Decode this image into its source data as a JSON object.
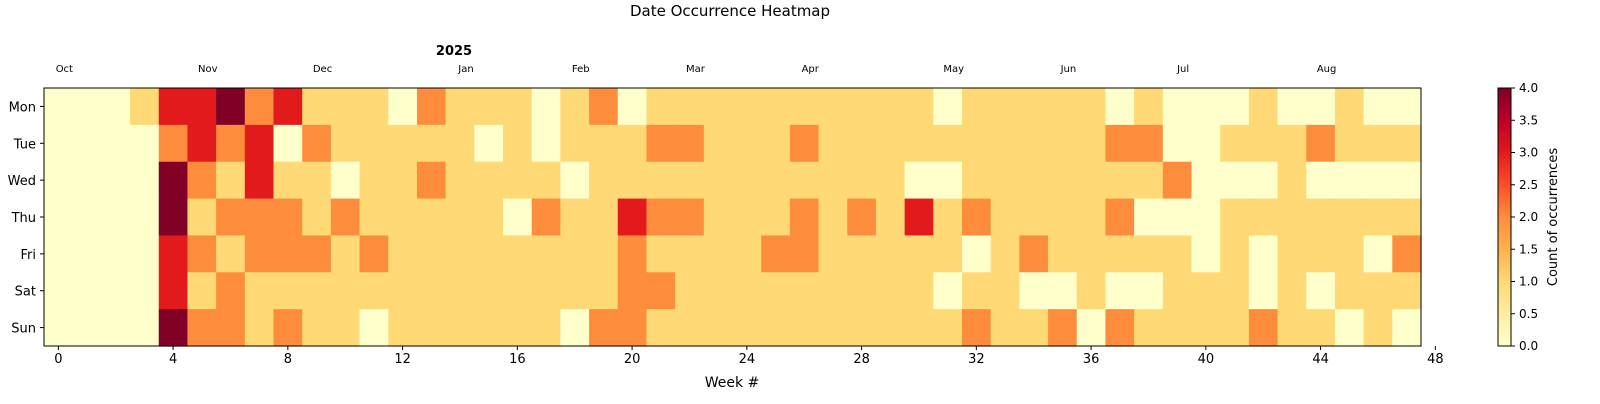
{
  "chart_data": {
    "type": "heatmap",
    "title": "Date Occurrence Heatmap",
    "year_label": "2025",
    "xlabel": "Week #",
    "colorbar_label": "Count of occurrences",
    "x_ticks": [
      0,
      4,
      8,
      12,
      16,
      20,
      24,
      28,
      32,
      36,
      40,
      44,
      48
    ],
    "xlim": [
      -0.5,
      47.5
    ],
    "rows": [
      "Mon",
      "Tue",
      "Wed",
      "Thu",
      "Fri",
      "Sat",
      "Sun"
    ],
    "months": [
      {
        "label": "Oct",
        "week": 0
      },
      {
        "label": "Nov",
        "week": 5
      },
      {
        "label": "Dec",
        "week": 9
      },
      {
        "label": "Jan",
        "week": 14
      },
      {
        "label": "Feb",
        "week": 18
      },
      {
        "label": "Mar",
        "week": 22
      },
      {
        "label": "Apr",
        "week": 26
      },
      {
        "label": "May",
        "week": 31
      },
      {
        "label": "Jun",
        "week": 35
      },
      {
        "label": "Jul",
        "week": 39
      },
      {
        "label": "Aug",
        "week": 44
      }
    ],
    "colorbar_ticks": [
      "0.0",
      "0.5",
      "1.0",
      "1.5",
      "2.0",
      "2.5",
      "3.0",
      "3.5",
      "4.0"
    ],
    "vmin": 0,
    "vmax": 4,
    "colormap": [
      "#ffffcc",
      "#ffeda0",
      "#fed976",
      "#feb24c",
      "#fd8d3c",
      "#fc4e2a",
      "#e31a1c",
      "#bd0026",
      "#800026"
    ],
    "values": [
      [
        0,
        0,
        0,
        1,
        3,
        3,
        4,
        2,
        3,
        1,
        1,
        1,
        0,
        2,
        1,
        1,
        1,
        0,
        1,
        2,
        0,
        1,
        1,
        1,
        1,
        1,
        1,
        1,
        1,
        1,
        1,
        0,
        1,
        1,
        1,
        1,
        1,
        0,
        1,
        0,
        0,
        0,
        1,
        0,
        0,
        1,
        0,
        0
      ],
      [
        0,
        0,
        0,
        0,
        2,
        3,
        2,
        3,
        0,
        2,
        1,
        1,
        1,
        1,
        1,
        0,
        1,
        0,
        1,
        1,
        1,
        2,
        2,
        1,
        1,
        1,
        2,
        1,
        1,
        1,
        1,
        1,
        1,
        1,
        1,
        1,
        1,
        2,
        2,
        0,
        0,
        1,
        1,
        1,
        2,
        1,
        1,
        1
      ],
      [
        0,
        0,
        0,
        0,
        4,
        2,
        1,
        3,
        1,
        1,
        0,
        1,
        1,
        2,
        1,
        1,
        1,
        1,
        0,
        1,
        1,
        1,
        1,
        1,
        1,
        1,
        1,
        1,
        1,
        1,
        0,
        0,
        1,
        1,
        1,
        1,
        1,
        1,
        1,
        2,
        0,
        0,
        0,
        1,
        0,
        0,
        0,
        0
      ],
      [
        0,
        0,
        0,
        0,
        4,
        1,
        2,
        2,
        2,
        1,
        2,
        1,
        1,
        1,
        1,
        1,
        0,
        2,
        1,
        1,
        3,
        2,
        2,
        1,
        1,
        1,
        2,
        1,
        2,
        1,
        3,
        1,
        2,
        1,
        1,
        1,
        1,
        2,
        0,
        0,
        0,
        1,
        1,
        1,
        1,
        1,
        1,
        1
      ],
      [
        0,
        0,
        0,
        0,
        3,
        2,
        1,
        2,
        2,
        2,
        1,
        2,
        1,
        1,
        1,
        1,
        1,
        1,
        1,
        1,
        2,
        1,
        1,
        1,
        1,
        2,
        2,
        1,
        1,
        1,
        1,
        1,
        0,
        1,
        2,
        1,
        1,
        1,
        1,
        1,
        0,
        1,
        0,
        1,
        1,
        1,
        0,
        2
      ],
      [
        0,
        0,
        0,
        0,
        3,
        1,
        2,
        1,
        1,
        1,
        1,
        1,
        1,
        1,
        1,
        1,
        1,
        1,
        1,
        1,
        2,
        2,
        1,
        1,
        1,
        1,
        1,
        1,
        1,
        1,
        1,
        0,
        1,
        1,
        0,
        0,
        1,
        0,
        0,
        1,
        1,
        1,
        0,
        1,
        0,
        1,
        1,
        1
      ],
      [
        0,
        0,
        0,
        0,
        4,
        2,
        2,
        1,
        2,
        1,
        1,
        0,
        1,
        1,
        1,
        1,
        1,
        1,
        0,
        2,
        2,
        1,
        1,
        1,
        1,
        1,
        1,
        1,
        1,
        1,
        1,
        1,
        2,
        1,
        1,
        2,
        0,
        2,
        1,
        1,
        1,
        1,
        2,
        1,
        1,
        0,
        1,
        0
      ]
    ]
  }
}
